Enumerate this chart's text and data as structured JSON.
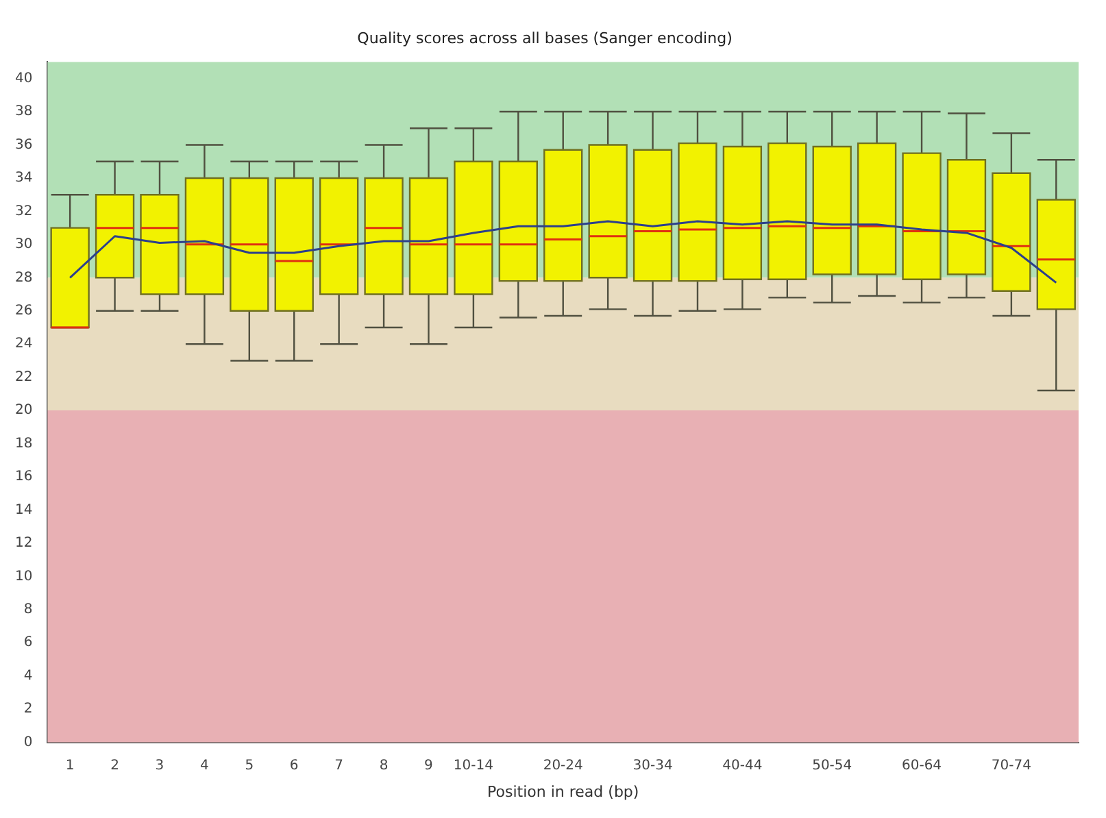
{
  "chart_data": {
    "type": "box",
    "title": "Quality scores across all bases (Sanger encoding)",
    "xlabel": "Position in read (bp)",
    "categories": [
      "1",
      "2",
      "3",
      "4",
      "5",
      "6",
      "7",
      "8",
      "9",
      "10-14",
      null,
      "20-24",
      null,
      "30-34",
      null,
      "40-44",
      null,
      "50-54",
      null,
      "60-64",
      null,
      "70-74",
      null
    ],
    "ylim": [
      0,
      41
    ],
    "yticks": [
      0,
      2,
      4,
      6,
      8,
      10,
      12,
      14,
      16,
      18,
      20,
      22,
      24,
      26,
      28,
      30,
      32,
      34,
      36,
      38,
      40
    ],
    "bands": [
      {
        "axis": "y",
        "from": 28,
        "to": 41,
        "color": "#b2e0b6"
      },
      {
        "axis": "y",
        "from": 20,
        "to": 28,
        "color": "#e8dcc0"
      },
      {
        "axis": "y",
        "from": 0,
        "to": 20,
        "color": "#e8b0b4"
      }
    ],
    "series": [
      {
        "color": "#f2f200",
        "boxes": [
          {
            "low": 25,
            "q1": 25,
            "median": 25,
            "q3": 31,
            "high": 33
          },
          {
            "low": 26,
            "q1": 28,
            "median": 31,
            "q3": 33,
            "high": 35
          },
          {
            "low": 26,
            "q1": 27,
            "median": 31,
            "q3": 33,
            "high": 35
          },
          {
            "low": 24,
            "q1": 27,
            "median": 30,
            "q3": 34,
            "high": 36
          },
          {
            "low": 23,
            "q1": 26,
            "median": 30,
            "q3": 34,
            "high": 35
          },
          {
            "low": 23,
            "q1": 26,
            "median": 29,
            "q3": 34,
            "high": 35
          },
          {
            "low": 24,
            "q1": 27,
            "median": 30,
            "q3": 34,
            "high": 35
          },
          {
            "low": 25,
            "q1": 27,
            "median": 31,
            "q3": 34,
            "high": 36
          },
          {
            "low": 24,
            "q1": 27,
            "median": 30,
            "q3": 34,
            "high": 37
          },
          {
            "low": 25,
            "q1": 27,
            "median": 30,
            "q3": 35,
            "high": 37
          },
          {
            "low": 25.6,
            "q1": 27.8,
            "median": 30,
            "q3": 35,
            "high": 38
          },
          {
            "low": 25.7,
            "q1": 27.8,
            "median": 30.3,
            "q3": 35.7,
            "high": 38
          },
          {
            "low": 26.1,
            "q1": 28,
            "median": 30.5,
            "q3": 36,
            "high": 38
          },
          {
            "low": 25.7,
            "q1": 27.8,
            "median": 30.8,
            "q3": 35.7,
            "high": 38
          },
          {
            "low": 26,
            "q1": 27.8,
            "median": 30.9,
            "q3": 36.1,
            "high": 38
          },
          {
            "low": 26.1,
            "q1": 27.9,
            "median": 31,
            "q3": 35.9,
            "high": 38
          },
          {
            "low": 26.8,
            "q1": 27.9,
            "median": 31.1,
            "q3": 36.1,
            "high": 38
          },
          {
            "low": 26.5,
            "q1": 28.2,
            "median": 31,
            "q3": 35.9,
            "high": 38
          },
          {
            "low": 26.9,
            "q1": 28.2,
            "median": 31.1,
            "q3": 36.1,
            "high": 38
          },
          {
            "low": 26.5,
            "q1": 27.9,
            "median": 30.8,
            "q3": 35.5,
            "high": 38
          },
          {
            "low": 26.8,
            "q1": 28.2,
            "median": 30.8,
            "q3": 35.1,
            "high": 37.9
          },
          {
            "low": 25.7,
            "q1": 27.2,
            "median": 29.9,
            "q3": 34.3,
            "high": 36.7
          },
          {
            "low": 21.2,
            "q1": 26.1,
            "median": 29.1,
            "q3": 32.7,
            "high": 35.1
          }
        ]
      },
      {
        "type": "line",
        "color": "#2c3f8c",
        "values": [
          28,
          30.5,
          30.1,
          30.2,
          29.5,
          29.5,
          29.9,
          30.2,
          30.2,
          30.7,
          31.1,
          31.1,
          31.4,
          31.1,
          31.4,
          31.2,
          31.4,
          31.2,
          31.2,
          30.9,
          30.7,
          29.8,
          27.7
        ]
      }
    ]
  }
}
